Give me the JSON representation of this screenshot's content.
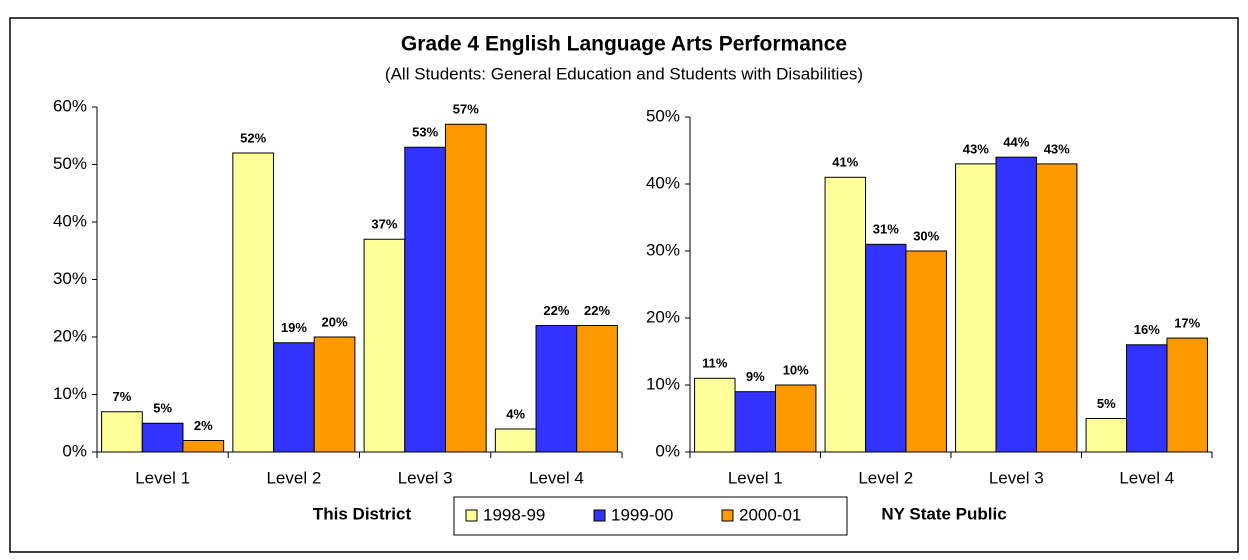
{
  "header": {
    "title": "Grade 4 English Language Arts Performance",
    "subtitle": "(All Students: General Education and Students with Disabilities)"
  },
  "chart_data": [
    {
      "type": "bar",
      "xlabel": "This District",
      "categories": [
        "Level 1",
        "Level 2",
        "Level 3",
        "Level 4"
      ],
      "series": [
        {
          "name": "1998-99",
          "color": "#ffff99",
          "values": [
            7,
            52,
            37,
            4
          ],
          "value_labels": [
            "7%",
            "52%",
            "37%",
            "4%"
          ]
        },
        {
          "name": "1999-00",
          "color": "#3333ff",
          "values": [
            5,
            19,
            53,
            22
          ],
          "value_labels": [
            "5%",
            "19%",
            "53%",
            "22%"
          ]
        },
        {
          "name": "2000-01",
          "color": "#ff9900",
          "values": [
            2,
            20,
            57,
            22
          ],
          "value_labels": [
            "2%",
            "20%",
            "57%",
            "22%"
          ]
        }
      ],
      "ylim": [
        0,
        60
      ],
      "yticks": [
        {
          "value": 0,
          "label": "0%"
        },
        {
          "value": 10,
          "label": "10%"
        },
        {
          "value": 20,
          "label": "20%"
        },
        {
          "value": 30,
          "label": "30%"
        },
        {
          "value": 40,
          "label": "40%"
        },
        {
          "value": 50,
          "label": "50%"
        },
        {
          "value": 60,
          "label": "60%"
        }
      ]
    },
    {
      "type": "bar",
      "xlabel": "NY State Public",
      "categories": [
        "Level 1",
        "Level 2",
        "Level 3",
        "Level 4"
      ],
      "series": [
        {
          "name": "1998-99",
          "color": "#ffff99",
          "values": [
            11,
            41,
            43,
            5
          ],
          "value_labels": [
            "11%",
            "41%",
            "43%",
            "5%"
          ]
        },
        {
          "name": "1999-00",
          "color": "#3333ff",
          "values": [
            9,
            31,
            44,
            16
          ],
          "value_labels": [
            "9%",
            "31%",
            "44%",
            "16%"
          ]
        },
        {
          "name": "2000-01",
          "color": "#ff9900",
          "values": [
            10,
            30,
            43,
            17
          ],
          "value_labels": [
            "10%",
            "30%",
            "43%",
            "17%"
          ]
        }
      ],
      "ylim": [
        0,
        50
      ],
      "yticks": [
        {
          "value": 0,
          "label": "0%"
        },
        {
          "value": 10,
          "label": "10%"
        },
        {
          "value": 20,
          "label": "20%"
        },
        {
          "value": 30,
          "label": "30%"
        },
        {
          "value": 40,
          "label": "40%"
        },
        {
          "value": 50,
          "label": "50%"
        }
      ]
    }
  ]
}
